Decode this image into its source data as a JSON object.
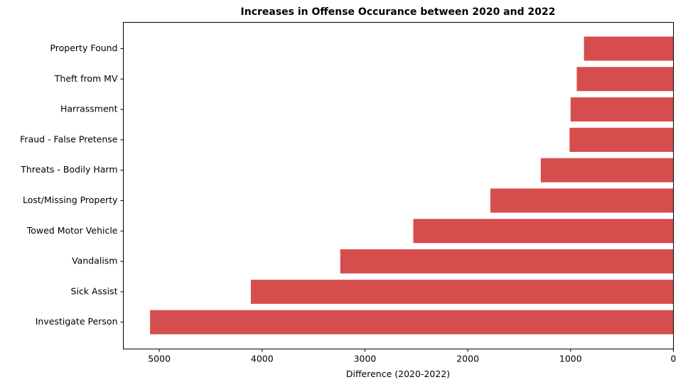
{
  "chart_data": {
    "type": "bar",
    "orientation": "horizontal",
    "title": "Increases in Offense Occurance between 2020 and 2022",
    "xlabel": "Difference (2020-2022)",
    "ylabel": "",
    "xlim": [
      5350,
      0
    ],
    "x_inverted": true,
    "xticks": [
      5000,
      4000,
      3000,
      2000,
      1000,
      0
    ],
    "categories": [
      "Property Found",
      "Theft from MV",
      "Harrassment",
      "Fraud - False Pretense",
      "Threats - Bodily Harm",
      "Lost/Missing Property",
      "Towed Motor Vehicle",
      "Vandalism",
      "Sick Assist",
      "Investigate Person"
    ],
    "values": [
      870,
      940,
      1000,
      1010,
      1290,
      1780,
      2530,
      3240,
      4110,
      5090
    ],
    "bar_color": "#d64d4d",
    "grid": false,
    "legend": "none"
  }
}
